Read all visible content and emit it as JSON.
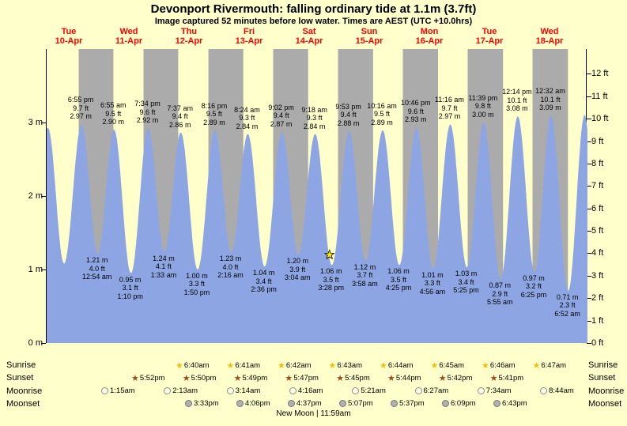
{
  "title": "Devonport Rivermouth: falling  ordinary tide at 1.1m (3.7ft)",
  "subtitle": "Image captured 52 minutes before low water. Times are AEST (UTC +10.0hrs)",
  "chart_data": {
    "type": "area",
    "title": "Devonport Rivermouth tide curve",
    "y_axis_left": {
      "unit": "m",
      "range": [
        0,
        4
      ],
      "labels": [
        "3 m",
        "2 m",
        "1 m",
        "0 m"
      ]
    },
    "y_axis_right": {
      "unit": "ft",
      "range": [
        0,
        12
      ],
      "labels": [
        "12 ft",
        "11 ft",
        "10 ft",
        "9 ft",
        "8 ft",
        "7 ft",
        "6 ft",
        "5 ft",
        "4 ft",
        "3 ft",
        "2 ft",
        "1 ft",
        "0 ft"
      ]
    },
    "days": [
      {
        "dow": "Tue",
        "date": "10-Apr"
      },
      {
        "dow": "Wed",
        "date": "11-Apr"
      },
      {
        "dow": "Thu",
        "date": "12-Apr"
      },
      {
        "dow": "Fri",
        "date": "13-Apr"
      },
      {
        "dow": "Sat",
        "date": "14-Apr"
      },
      {
        "dow": "Sun",
        "date": "15-Apr"
      },
      {
        "dow": "Mon",
        "date": "16-Apr"
      },
      {
        "dow": "Tue",
        "date": "17-Apr"
      },
      {
        "dow": "Wed",
        "date": "18-Apr"
      }
    ],
    "tides": [
      {
        "type": "high",
        "day": 0,
        "time": "6:55 pm",
        "ft": "9.7 ft",
        "m": "2.97 m"
      },
      {
        "type": "low",
        "day": 1,
        "time": "12:54 am",
        "ft": "4.0 ft",
        "m": "1.21 m"
      },
      {
        "type": "high",
        "day": 1,
        "time": "6:55 am",
        "ft": "9.5 ft",
        "m": "2.90 m"
      },
      {
        "type": "low",
        "day": 1,
        "time": "1:10 pm",
        "ft": "3.1 ft",
        "m": "0.95 m"
      },
      {
        "type": "high",
        "day": 1,
        "time": "7:34 pm",
        "ft": "9.6 ft",
        "m": "2.92 m"
      },
      {
        "type": "low",
        "day": 2,
        "time": "1:33 am",
        "ft": "4.1 ft",
        "m": "1.24 m"
      },
      {
        "type": "high",
        "day": 2,
        "time": "7:37 am",
        "ft": "9.4 ft",
        "m": "2.86 m"
      },
      {
        "type": "low",
        "day": 2,
        "time": "1:50 pm",
        "ft": "3.3 ft",
        "m": "1.00 m"
      },
      {
        "type": "high",
        "day": 2,
        "time": "8:16 pm",
        "ft": "9.5 ft",
        "m": "2.89 m"
      },
      {
        "type": "low",
        "day": 3,
        "time": "2:16 am",
        "ft": "4.0 ft",
        "m": "1.23 m"
      },
      {
        "type": "high",
        "day": 3,
        "time": "8:24 am",
        "ft": "9.3 ft",
        "m": "2.84 m"
      },
      {
        "type": "low",
        "day": 3,
        "time": "2:36 pm",
        "ft": "3.4 ft",
        "m": "1.04 m"
      },
      {
        "type": "high",
        "day": 3,
        "time": "9:02 pm",
        "ft": "9.4 ft",
        "m": "2.87 m"
      },
      {
        "type": "low",
        "day": 4,
        "time": "3:04 am",
        "ft": "3.9 ft",
        "m": "1.20 m"
      },
      {
        "type": "high",
        "day": 4,
        "time": "9:18 am",
        "ft": "9.3 ft",
        "m": "2.84 m"
      },
      {
        "type": "low",
        "day": 4,
        "time": "3:28 pm",
        "ft": "3.5 ft",
        "m": "1.06 m"
      },
      {
        "type": "high",
        "day": 4,
        "time": "9:53 pm",
        "ft": "9.4 ft",
        "m": "2.88 m"
      },
      {
        "type": "low",
        "day": 5,
        "time": "3:58 am",
        "ft": "3.7 ft",
        "m": "1.12 m"
      },
      {
        "type": "high",
        "day": 5,
        "time": "10:16 am",
        "ft": "9.5 ft",
        "m": "2.89 m"
      },
      {
        "type": "low",
        "day": 5,
        "time": "4:25 pm",
        "ft": "3.5 ft",
        "m": "1.06 m"
      },
      {
        "type": "high",
        "day": 5,
        "time": "10:46 pm",
        "ft": "9.6 ft",
        "m": "2.93 m"
      },
      {
        "type": "low",
        "day": 6,
        "time": "4:56 am",
        "ft": "3.3 ft",
        "m": "1.01 m"
      },
      {
        "type": "high",
        "day": 6,
        "time": "11:16 am",
        "ft": "9.7 ft",
        "m": "2.97 m"
      },
      {
        "type": "low",
        "day": 6,
        "time": "5:25 pm",
        "ft": "3.4 ft",
        "m": "1.03 m"
      },
      {
        "type": "high",
        "day": 6,
        "time": "11:39 pm",
        "ft": "9.8 ft",
        "m": "3.00 m"
      },
      {
        "type": "low",
        "day": 7,
        "time": "5:55 am",
        "ft": "2.9 ft",
        "m": "0.87 m"
      },
      {
        "type": "high",
        "day": 7,
        "time": "12:14 pm",
        "ft": "10.1 ft",
        "m": "3.08 m"
      },
      {
        "type": "low",
        "day": 7,
        "time": "6:25 pm",
        "ft": "3.2 ft",
        "m": "0.97 m"
      },
      {
        "type": "high",
        "day": 8,
        "time": "12:32 am",
        "ft": "10.1 ft",
        "m": "3.09 m"
      },
      {
        "type": "low",
        "day": 8,
        "time": "6:52 am",
        "ft": "2.3 ft",
        "m": "0.71 m"
      }
    ],
    "edge_anchors": [
      {
        "day": 0,
        "time": "6:30 am",
        "height": 2.92
      },
      {
        "day": 0,
        "time": "12:25 pm",
        "height": 1.08
      },
      {
        "day": 8,
        "time": "12:58 pm",
        "height": 3.1
      }
    ],
    "current_marker": {
      "day": 4,
      "time": "2:36 pm"
    },
    "colors": {
      "background": "#ffffcb",
      "night_band": "#ababab",
      "tide_fill": "#8da6e3",
      "day_label": "#ff0000",
      "marker": "#ffe800",
      "sunrise_star": "#edc10a",
      "sunset_star": "#9c4a1e",
      "moonrise_fill": "#ffffe8",
      "moonset_fill": "#b0b0b0"
    },
    "astro": {
      "row_labels": [
        "Sunrise",
        "Sunset",
        "Moonrise",
        "Moonset"
      ],
      "sunrise": [
        "6:40am",
        "6:41am",
        "6:42am",
        "6:43am",
        "6:44am",
        "6:45am",
        "6:46am",
        "6:47am"
      ],
      "sunset": [
        "5:52pm",
        "5:50pm",
        "5:49pm",
        "5:47pm",
        "5:45pm",
        "5:44pm",
        "5:42pm",
        "5:41pm"
      ],
      "moonrise": [
        "1:15am",
        "2:13am",
        "3:14am",
        "4:16am",
        "5:21am",
        "6:27am",
        "7:34am",
        "8:44am"
      ],
      "moonset": [
        "3:33pm",
        "4:06pm",
        "4:37pm",
        "5:07pm",
        "5:37pm",
        "6:09pm",
        "6:43pm"
      ],
      "new_moon": "New Moon | 11:59am"
    }
  }
}
